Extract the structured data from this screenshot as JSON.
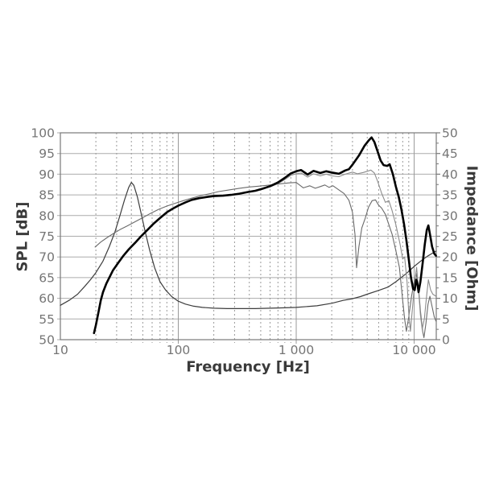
{
  "chart_data": {
    "type": "line",
    "title": "",
    "xlabel": "Frequency [Hz]",
    "ylabel_left": "SPL [dB]",
    "ylabel_right": "Impedance [Ohm]",
    "x_scale": "log",
    "x_range": [
      10,
      15400
    ],
    "y_left_range": [
      50,
      100
    ],
    "y_right_range": [
      0,
      50
    ],
    "y_left_ticks": [
      50,
      55,
      60,
      65,
      70,
      75,
      80,
      85,
      90,
      95,
      100
    ],
    "y_right_ticks": [
      0,
      5,
      10,
      15,
      20,
      25,
      30,
      35,
      40,
      45,
      50
    ],
    "y_right_minor_ticks": [
      2.5,
      7.5,
      12.5,
      17.5,
      22.5,
      27.5,
      32.5,
      37.5,
      42.5,
      47.5
    ],
    "x_major_ticks": [
      {
        "f": 10,
        "label": "10"
      },
      {
        "f": 100,
        "label": "100"
      },
      {
        "f": 1000,
        "label": "1 000"
      },
      {
        "f": 10000,
        "label": "10 000"
      }
    ],
    "grid": {
      "major_vlines": [
        100,
        1000,
        10000
      ],
      "minor_vlines": [
        20,
        30,
        40,
        50,
        60,
        70,
        80,
        90,
        200,
        300,
        400,
        500,
        600,
        700,
        800,
        900,
        2000,
        3000,
        4000,
        5000,
        6000,
        7000,
        8000,
        9000
      ],
      "hlines_step_db": 5,
      "grid_on": true,
      "legend": "none"
    },
    "style": {
      "frame_color": "#787878",
      "hgrid_color": "#ababab",
      "vmajor_color": "#9a9a9a",
      "vminor_color": "#9a9a9a",
      "tick_text_color": "#757575",
      "title_text_color": "#3a3a3a"
    },
    "series": [
      {
        "name": "impedance",
        "axis": "right",
        "stroke": "#3d3d3d",
        "width": 1.2,
        "points": [
          [
            10,
            8.3
          ],
          [
            12,
            9.6
          ],
          [
            14,
            11
          ],
          [
            16,
            12.8
          ],
          [
            18,
            14.5
          ],
          [
            20,
            16.2
          ],
          [
            23,
            19
          ],
          [
            26,
            22.5
          ],
          [
            29,
            26
          ],
          [
            32,
            30
          ],
          [
            35,
            33.8
          ],
          [
            38,
            36.8
          ],
          [
            40,
            38
          ],
          [
            42,
            37.3
          ],
          [
            45,
            34.5
          ],
          [
            48,
            31
          ],
          [
            52,
            26.5
          ],
          [
            57,
            21.8
          ],
          [
            63,
            17.4
          ],
          [
            70,
            14
          ],
          [
            78,
            12
          ],
          [
            88,
            10.4
          ],
          [
            100,
            9.3
          ],
          [
            115,
            8.6
          ],
          [
            135,
            8.1
          ],
          [
            160,
            7.8
          ],
          [
            200,
            7.6
          ],
          [
            260,
            7.5
          ],
          [
            350,
            7.5
          ],
          [
            450,
            7.5
          ],
          [
            600,
            7.6
          ],
          [
            800,
            7.7
          ],
          [
            1000,
            7.8
          ],
          [
            1500,
            8.2
          ],
          [
            2000,
            8.8
          ],
          [
            2500,
            9.5
          ],
          [
            3000,
            9.9
          ],
          [
            3500,
            10.4
          ],
          [
            4000,
            11
          ],
          [
            5000,
            11.9
          ],
          [
            6000,
            12.7
          ],
          [
            7000,
            14
          ],
          [
            8000,
            15.3
          ],
          [
            9000,
            16.5
          ],
          [
            10000,
            17.7
          ],
          [
            11500,
            19.1
          ],
          [
            13000,
            20.2
          ],
          [
            15300,
            21.4
          ]
        ]
      },
      {
        "name": "spl-off-axis",
        "axis": "left",
        "stroke": "#6a6a6a",
        "width": 1.1,
        "points": [
          [
            19.7,
            72.4
          ],
          [
            22,
            73.6
          ],
          [
            25,
            74.7
          ],
          [
            28,
            75.6
          ],
          [
            32,
            76.6
          ],
          [
            37,
            77.5
          ],
          [
            43,
            78.5
          ],
          [
            50,
            79.5
          ],
          [
            58,
            80.5
          ],
          [
            68,
            81.5
          ],
          [
            80,
            82.3
          ],
          [
            95,
            83
          ],
          [
            110,
            83.6
          ],
          [
            130,
            84.2
          ],
          [
            155,
            84.8
          ],
          [
            185,
            85.3
          ],
          [
            220,
            85.8
          ],
          [
            270,
            86.2
          ],
          [
            330,
            86.6
          ],
          [
            400,
            86.9
          ],
          [
            480,
            87.1
          ],
          [
            560,
            87.3
          ],
          [
            650,
            87.5
          ],
          [
            750,
            87.7
          ],
          [
            870,
            87.9
          ],
          [
            1000,
            88
          ],
          [
            1150,
            86.7
          ],
          [
            1300,
            87.2
          ],
          [
            1450,
            86.6
          ],
          [
            1600,
            87
          ],
          [
            1750,
            87.4
          ],
          [
            1900,
            86.8
          ],
          [
            2050,
            87.2
          ],
          [
            2300,
            86.2
          ],
          [
            2550,
            85.3
          ],
          [
            2800,
            83.7
          ],
          [
            3000,
            80.8
          ],
          [
            3150,
            75.5
          ],
          [
            3250,
            67.4
          ],
          [
            3400,
            72.5
          ],
          [
            3600,
            77
          ],
          [
            3850,
            79.4
          ],
          [
            4100,
            82
          ],
          [
            4400,
            83.6
          ],
          [
            4700,
            83.8
          ],
          [
            5000,
            82.5
          ],
          [
            5300,
            81.8
          ],
          [
            5700,
            80.3
          ],
          [
            6100,
            77.8
          ],
          [
            6500,
            75.5
          ],
          [
            7000,
            71.5
          ],
          [
            7500,
            67.5
          ],
          [
            7900,
            61
          ],
          [
            8300,
            55
          ],
          [
            8600,
            52
          ],
          [
            9000,
            55.5
          ],
          [
            9500,
            60.5
          ],
          [
            10000,
            64
          ],
          [
            10400,
            66
          ],
          [
            10900,
            62.5
          ],
          [
            11300,
            57
          ],
          [
            11800,
            52
          ],
          [
            12100,
            50.5
          ],
          [
            12600,
            54
          ],
          [
            13100,
            58.5
          ],
          [
            13600,
            60.5
          ],
          [
            14200,
            58
          ],
          [
            14800,
            55.5
          ],
          [
            15300,
            54.5
          ]
        ]
      },
      {
        "name": "spl-secondary",
        "axis": "left",
        "stroke": "#8c8c8c",
        "width": 1.1,
        "points": [
          [
            600,
            86.9
          ],
          [
            700,
            87.7
          ],
          [
            800,
            88.7
          ],
          [
            900,
            89.7
          ],
          [
            1000,
            90.1
          ],
          [
            1100,
            90.3
          ],
          [
            1250,
            89.3
          ],
          [
            1400,
            90.1
          ],
          [
            1600,
            89.6
          ],
          [
            1800,
            90
          ],
          [
            2000,
            89.6
          ],
          [
            2300,
            89.4
          ],
          [
            2600,
            90
          ],
          [
            3000,
            90.5
          ],
          [
            3300,
            90.1
          ],
          [
            3700,
            90.4
          ],
          [
            4000,
            90.7
          ],
          [
            4300,
            91
          ],
          [
            4600,
            90.3
          ],
          [
            4900,
            88.3
          ],
          [
            5300,
            85.4
          ],
          [
            5700,
            83.2
          ],
          [
            6100,
            83.6
          ],
          [
            6500,
            81.2
          ],
          [
            7000,
            77.8
          ],
          [
            7600,
            73
          ],
          [
            8000,
            69.5
          ],
          [
            8300,
            70
          ],
          [
            8700,
            64
          ],
          [
            9000,
            56.5
          ],
          [
            9300,
            52
          ],
          [
            9700,
            58
          ],
          [
            10100,
            64
          ],
          [
            10500,
            67.5
          ],
          [
            10900,
            62
          ],
          [
            11300,
            56
          ],
          [
            11700,
            52.5
          ],
          [
            12200,
            55
          ],
          [
            12700,
            60
          ],
          [
            13200,
            64.5
          ],
          [
            13800,
            62
          ],
          [
            14400,
            61
          ],
          [
            15300,
            60.5
          ]
        ]
      },
      {
        "name": "spl-on-axis",
        "axis": "left",
        "stroke": "#000000",
        "width": 2.6,
        "points": [
          [
            19.3,
            51.6
          ],
          [
            20,
            53.5
          ],
          [
            21,
            56.5
          ],
          [
            22,
            59.5
          ],
          [
            23,
            61.5
          ],
          [
            24.5,
            63.5
          ],
          [
            26,
            65
          ],
          [
            28,
            66.8
          ],
          [
            31,
            68.6
          ],
          [
            34,
            70.2
          ],
          [
            38,
            71.8
          ],
          [
            43,
            73.4
          ],
          [
            48,
            74.9
          ],
          [
            55,
            76.6
          ],
          [
            62,
            78.1
          ],
          [
            70,
            79.4
          ],
          [
            80,
            80.8
          ],
          [
            90,
            81.7
          ],
          [
            100,
            82.4
          ],
          [
            115,
            83.2
          ],
          [
            130,
            83.8
          ],
          [
            150,
            84.2
          ],
          [
            175,
            84.5
          ],
          [
            200,
            84.7
          ],
          [
            240,
            84.8
          ],
          [
            280,
            85
          ],
          [
            330,
            85.3
          ],
          [
            390,
            85.7
          ],
          [
            450,
            86
          ],
          [
            520,
            86.5
          ],
          [
            600,
            87.1
          ],
          [
            700,
            88
          ],
          [
            800,
            89.1
          ],
          [
            900,
            90.2
          ],
          [
            1000,
            90.7
          ],
          [
            1100,
            91
          ],
          [
            1250,
            89.9
          ],
          [
            1400,
            90.8
          ],
          [
            1600,
            90.3
          ],
          [
            1800,
            90.7
          ],
          [
            2000,
            90.4
          ],
          [
            2300,
            90.1
          ],
          [
            2600,
            90.9
          ],
          [
            2800,
            91.2
          ],
          [
            3000,
            92.3
          ],
          [
            3400,
            94.5
          ],
          [
            3800,
            96.9
          ],
          [
            4100,
            98.1
          ],
          [
            4350,
            98.9
          ],
          [
            4600,
            97.8
          ],
          [
            4900,
            95.5
          ],
          [
            5200,
            93.3
          ],
          [
            5500,
            92.2
          ],
          [
            5900,
            92
          ],
          [
            6200,
            92.4
          ],
          [
            6600,
            90
          ],
          [
            7000,
            87
          ],
          [
            7400,
            84.5
          ],
          [
            7800,
            81.5
          ],
          [
            8200,
            78
          ],
          [
            8600,
            74
          ],
          [
            9000,
            69.5
          ],
          [
            9400,
            65
          ],
          [
            9800,
            62.3
          ],
          [
            10100,
            62
          ],
          [
            10400,
            64.5
          ],
          [
            10600,
            64
          ],
          [
            10900,
            61.5
          ],
          [
            11300,
            64
          ],
          [
            11800,
            68.5
          ],
          [
            12300,
            73
          ],
          [
            12800,
            76.5
          ],
          [
            13200,
            77.6
          ],
          [
            13700,
            75
          ],
          [
            14200,
            72.5
          ],
          [
            14800,
            70.8
          ],
          [
            15300,
            70.3
          ]
        ]
      }
    ]
  }
}
